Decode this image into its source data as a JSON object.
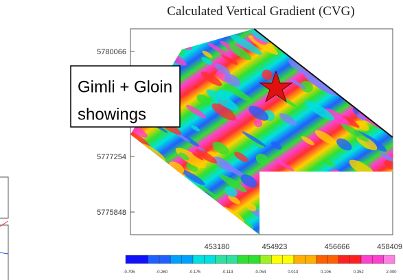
{
  "title": "Calculated Vertical Gradient (CVG)",
  "y_axis_labels": [
    "5780066",
    "5777254",
    "5775848"
  ],
  "x_axis_labels": [
    "453180",
    "454923",
    "456666",
    "458409"
  ],
  "colorbar_labels": [
    "-0.795",
    "-0.260",
    "-0.175",
    "-0.113",
    "-0.054",
    "0.013",
    "0.106",
    "0.352",
    "2.000"
  ],
  "annotation": {
    "line1": "Gimli + Gloin",
    "line2": "showings"
  }
}
